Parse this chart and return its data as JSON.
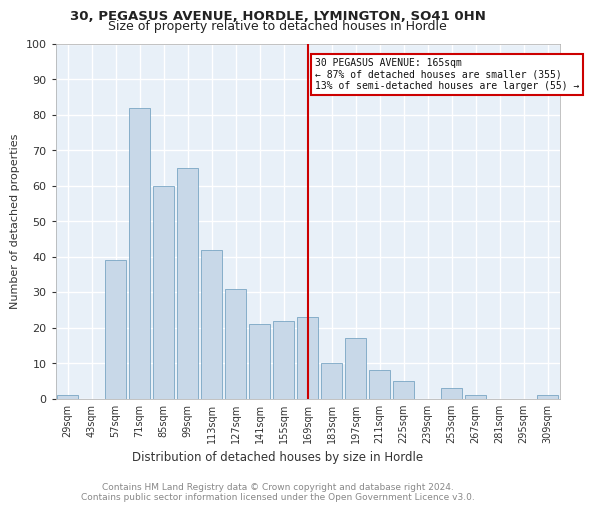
{
  "title1": "30, PEGASUS AVENUE, HORDLE, LYMINGTON, SO41 0HN",
  "title2": "Size of property relative to detached houses in Hordle",
  "xlabel": "Distribution of detached houses by size in Hordle",
  "ylabel": "Number of detached properties",
  "footer": "Contains HM Land Registry data © Crown copyright and database right 2024.\nContains public sector information licensed under the Open Government Licence v3.0.",
  "categories": [
    "29sqm",
    "43sqm",
    "57sqm",
    "71sqm",
    "85sqm",
    "99sqm",
    "113sqm",
    "127sqm",
    "141sqm",
    "155sqm",
    "169sqm",
    "183sqm",
    "197sqm",
    "211sqm",
    "225sqm",
    "239sqm",
    "253sqm",
    "267sqm",
    "281sqm",
    "295sqm",
    "309sqm"
  ],
  "values": [
    1,
    0,
    39,
    82,
    60,
    65,
    42,
    31,
    21,
    22,
    23,
    10,
    17,
    8,
    5,
    0,
    3,
    1,
    0,
    0,
    1
  ],
  "bar_color": "#c8d8e8",
  "bar_edge_color": "#6699bb",
  "bg_color": "#e8f0f8",
  "grid_color": "#ffffff",
  "vline_x": 10,
  "vline_color": "#cc0000",
  "annotation_title": "30 PEGASUS AVENUE: 165sqm",
  "annotation_line1": "← 87% of detached houses are smaller (355)",
  "annotation_line2": "13% of semi-detached houses are larger (55) →",
  "annotation_box_color": "#cc0000",
  "ylim": [
    0,
    100
  ],
  "yticks": [
    0,
    10,
    20,
    30,
    40,
    50,
    60,
    70,
    80,
    90,
    100
  ]
}
